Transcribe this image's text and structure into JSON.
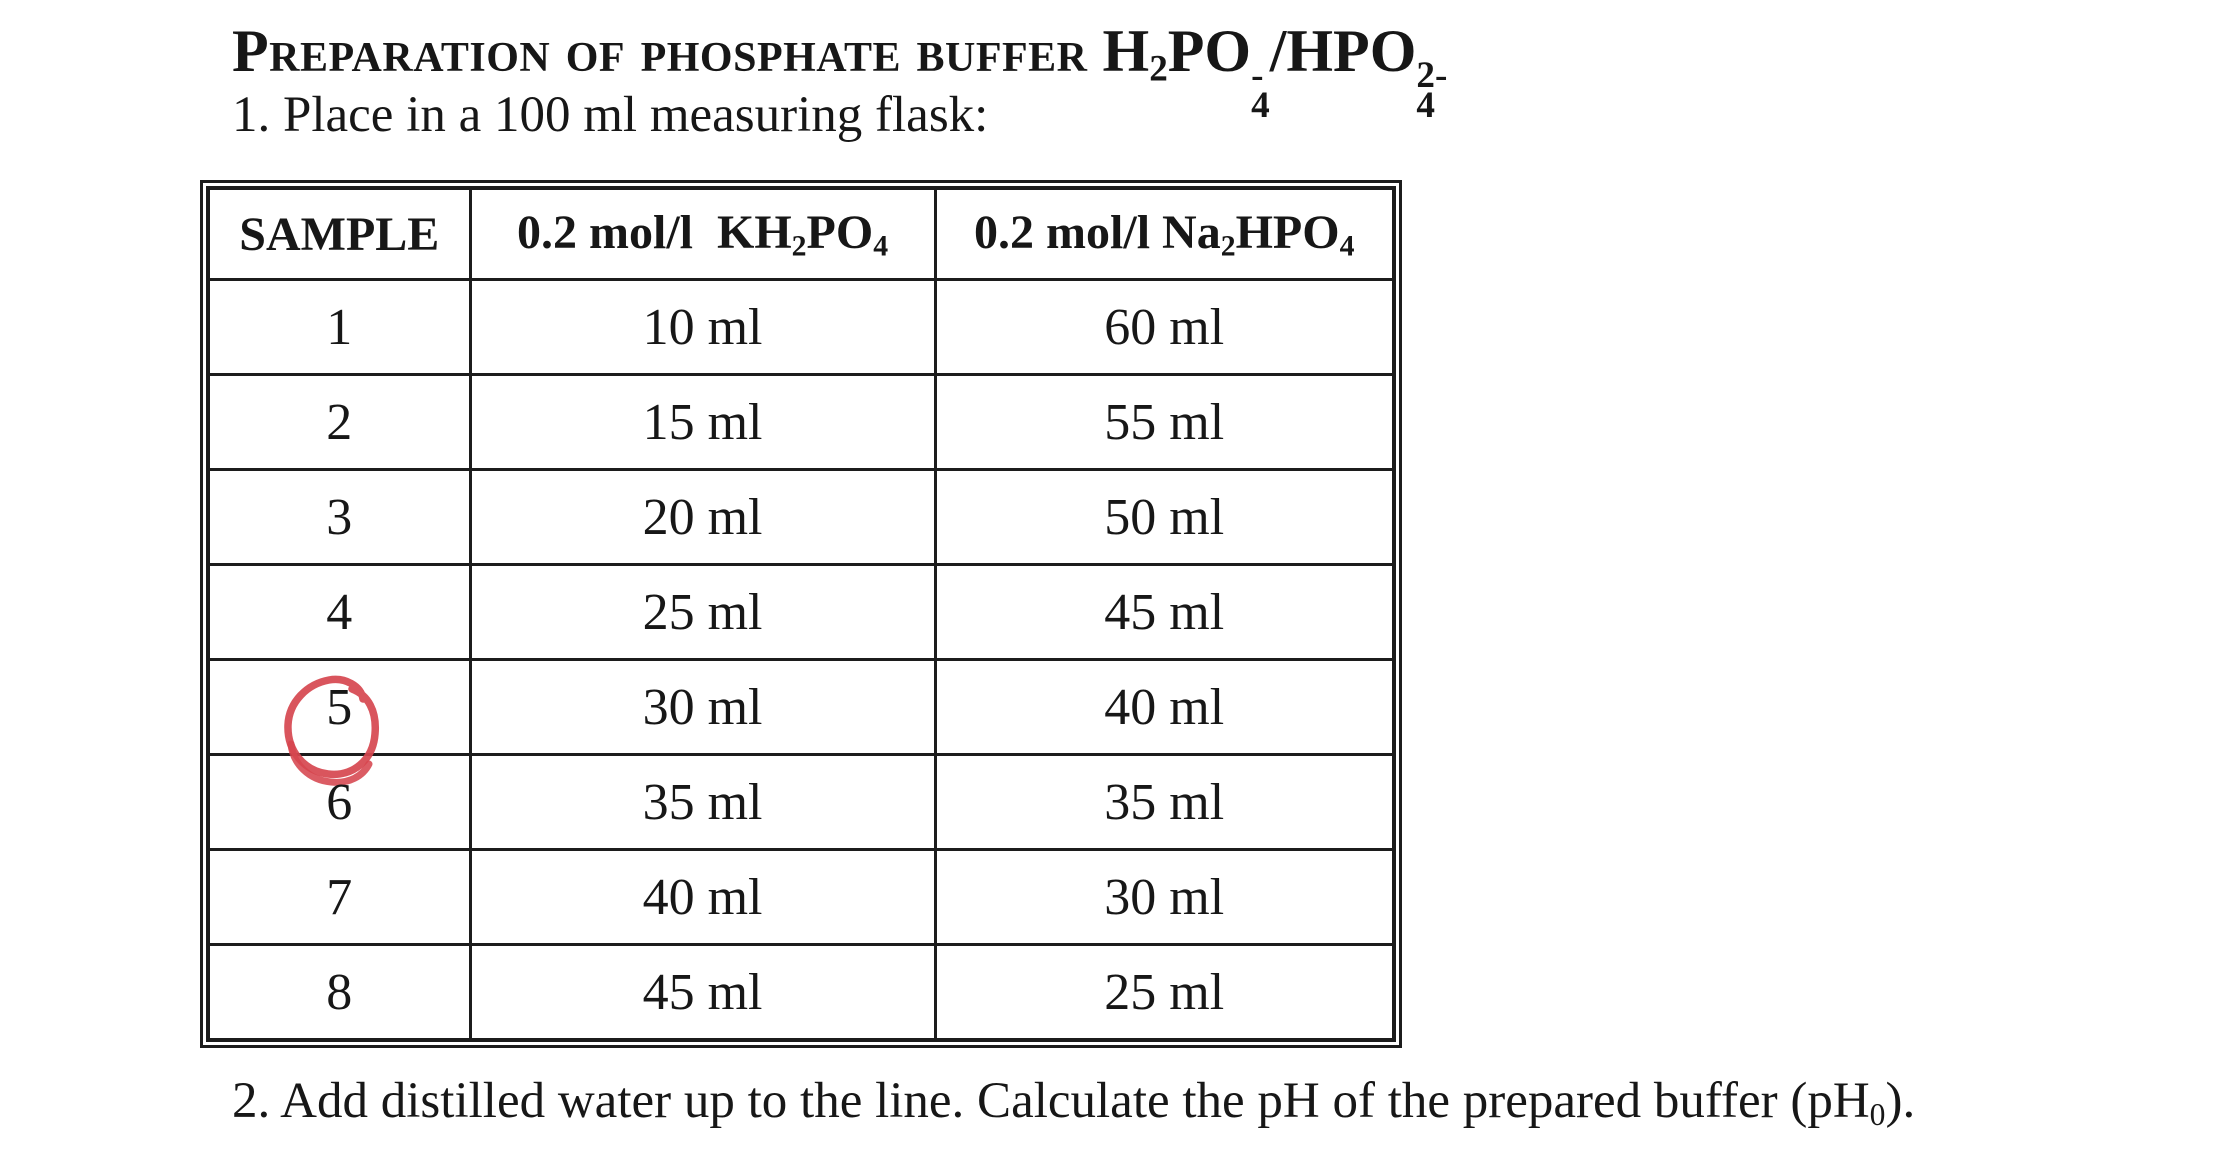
{
  "colors": {
    "background": "#ffffff",
    "text": "#171717",
    "table_border": "#1c1c1c",
    "annotation_red": "#d6464f"
  },
  "title": {
    "name_part": "Preparation of phosphate buffer",
    "formula": [
      {
        "t": "H"
      },
      {
        "sub": "2"
      },
      {
        "t": "PO"
      },
      {
        "sub": "4",
        "sup": "-"
      },
      {
        "t": "/HPO"
      },
      {
        "sub": "4",
        "sup": "2-"
      }
    ]
  },
  "step1": "1. Place in a 100 ml measuring flask:",
  "step2": [
    {
      "t": "2. Add distilled water up to the line. Calculate the pH of the prepared buffer (pH"
    },
    {
      "sub": "0"
    },
    {
      "t": ")."
    }
  ],
  "table": {
    "headers": {
      "sample": "SAMPLE",
      "kh2po4": [
        {
          "t": "0.2 mol/l  KH"
        },
        {
          "sub": "2"
        },
        {
          "t": "PO"
        },
        {
          "sub": "4"
        }
      ],
      "na2hpo4": [
        {
          "t": "0.2 mol/l Na"
        },
        {
          "sub": "2"
        },
        {
          "t": "HPO"
        },
        {
          "sub": "4"
        }
      ]
    },
    "rows": [
      {
        "sample": "1",
        "kh2po4": "10 ml",
        "na2hpo4": "60 ml"
      },
      {
        "sample": "2",
        "kh2po4": "15 ml",
        "na2hpo4": "55 ml"
      },
      {
        "sample": "3",
        "kh2po4": "20 ml",
        "na2hpo4": "50 ml"
      },
      {
        "sample": "4",
        "kh2po4": "25 ml",
        "na2hpo4": "45 ml"
      },
      {
        "sample": "5",
        "kh2po4": "30 ml",
        "na2hpo4": "40 ml"
      },
      {
        "sample": "6",
        "kh2po4": "35 ml",
        "na2hpo4": "35 ml"
      },
      {
        "sample": "7",
        "kh2po4": "40 ml",
        "na2hpo4": "30 ml"
      },
      {
        "sample": "8",
        "kh2po4": "45 ml",
        "na2hpo4": "25 ml"
      }
    ],
    "annotation": {
      "shape": "hand-drawn-red-circle",
      "marked_sample": "5",
      "color": "#d6464f"
    }
  }
}
